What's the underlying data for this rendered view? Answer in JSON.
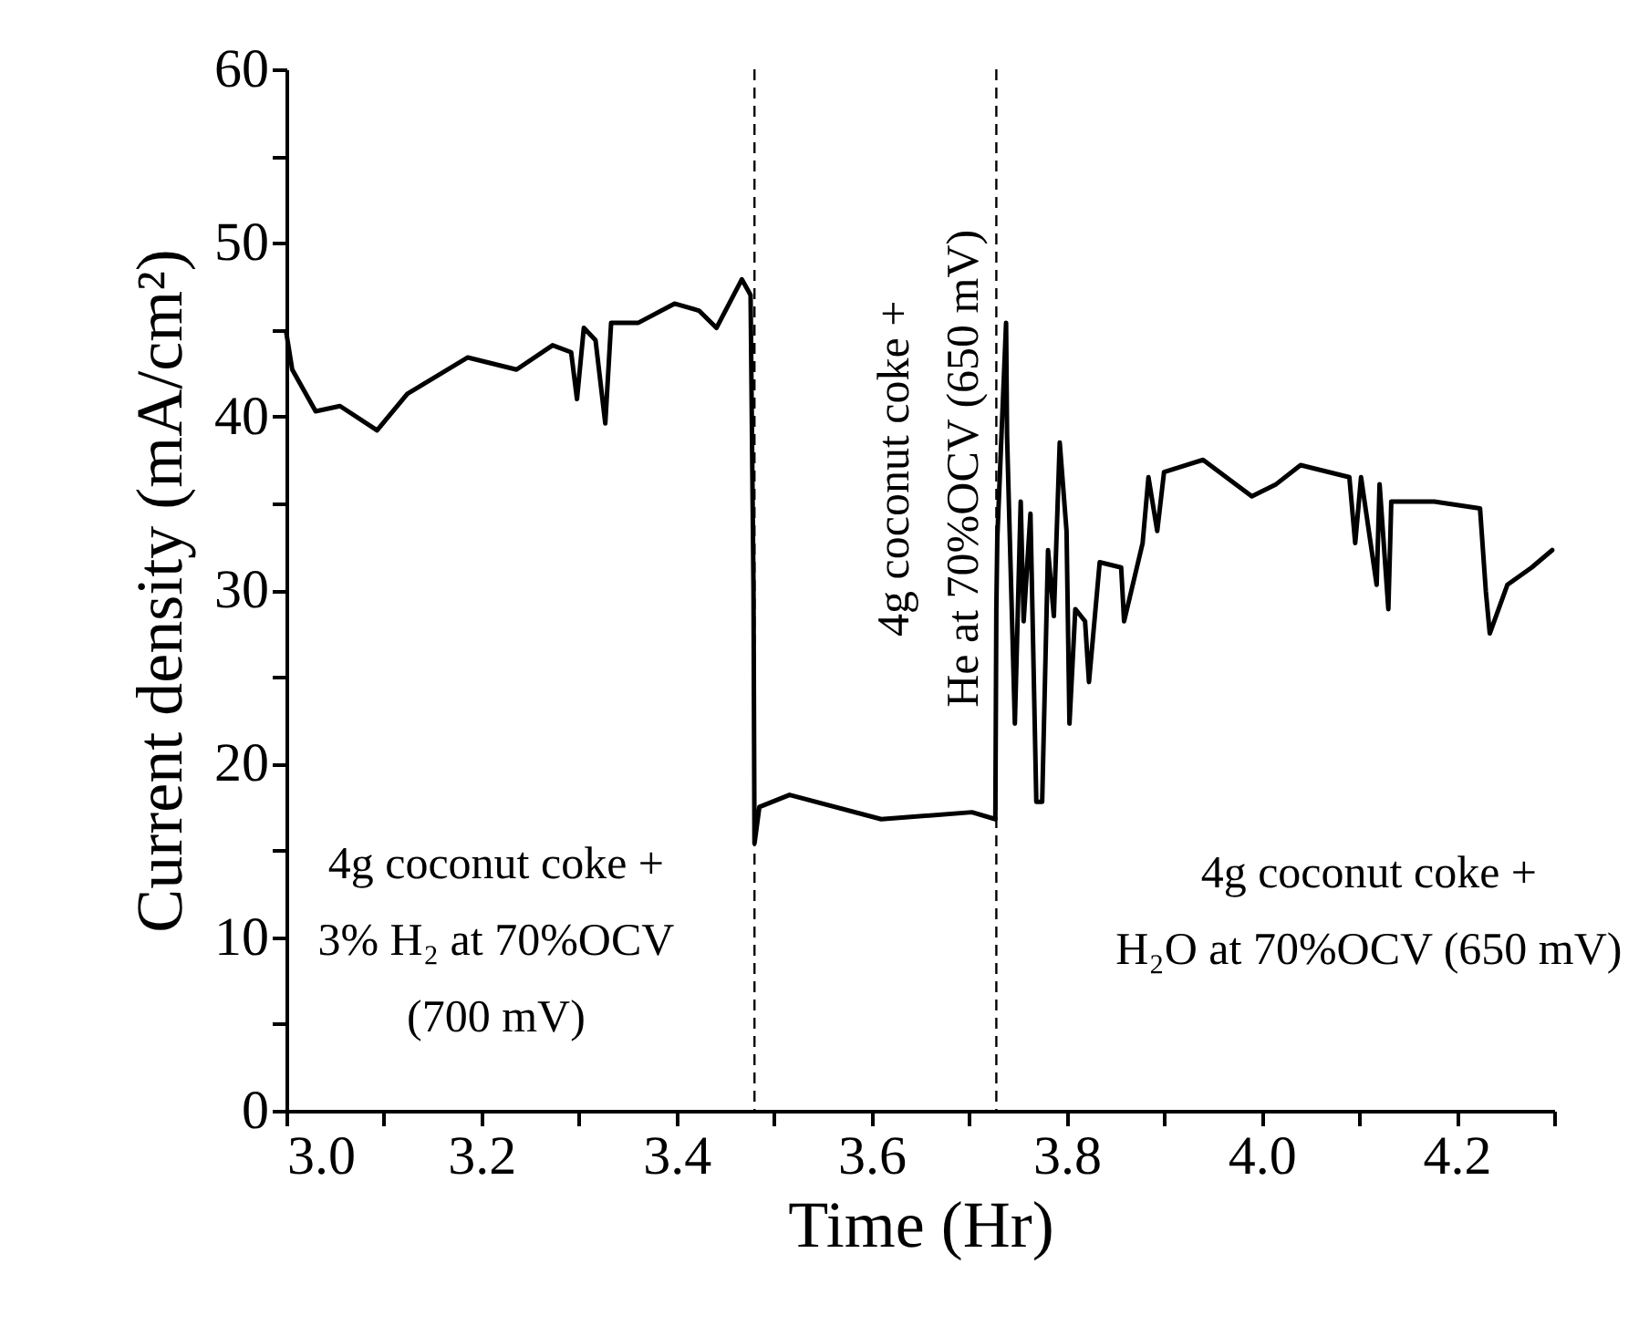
{
  "chart_data": {
    "type": "line",
    "xlabel": "Time (Hr)",
    "ylabel": "Current density (mA/cm²)",
    "x": [
      3.0,
      3.006,
      3.03,
      3.055,
      3.093,
      3.124,
      3.186,
      3.236,
      3.273,
      3.292,
      3.298,
      3.305,
      3.317,
      3.327,
      3.333,
      3.361,
      3.398,
      3.423,
      3.441,
      3.467,
      3.476,
      3.479,
      3.48,
      3.485,
      3.516,
      3.61,
      3.703,
      3.727,
      3.728,
      3.729,
      3.738,
      3.739,
      3.741,
      3.747,
      3.753,
      3.756,
      3.763,
      3.769,
      3.775,
      3.781,
      3.787,
      3.793,
      3.8,
      3.803,
      3.809,
      3.819,
      3.823,
      3.834,
      3.856,
      3.859,
      3.878,
      3.884,
      3.893,
      3.9,
      3.94,
      3.99,
      4.015,
      4.04,
      4.09,
      4.096,
      4.102,
      4.118,
      4.121,
      4.13,
      4.133,
      4.177,
      4.224,
      4.23,
      4.234,
      4.252,
      4.277,
      4.298
    ],
    "series": [
      {
        "color": "#000000",
        "values": [
          44.8,
          42.7,
          40.3,
          40.6,
          39.2,
          41.3,
          43.4,
          42.7,
          44.1,
          43.7,
          41.0,
          45.1,
          44.4,
          39.6,
          45.4,
          45.4,
          46.5,
          46.1,
          45.1,
          47.9,
          47.0,
          30.0,
          15.4,
          17.5,
          18.2,
          16.8,
          17.2,
          16.8,
          28.9,
          33.0,
          45.4,
          38.9,
          34.7,
          22.3,
          35.1,
          28.2,
          34.4,
          17.8,
          17.8,
          32.3,
          28.5,
          38.5,
          33.4,
          22.3,
          28.9,
          28.2,
          24.7,
          31.6,
          31.3,
          28.2,
          32.7,
          36.5,
          33.4,
          36.8,
          37.5,
          35.4,
          36.1,
          37.2,
          36.5,
          32.7,
          36.5,
          30.3,
          36.1,
          28.9,
          35.1,
          35.1,
          34.7,
          29.9,
          27.5,
          30.3,
          31.3,
          32.3
        ]
      }
    ],
    "xlim": [
      3.0,
      4.3
    ],
    "xticks": [
      {
        "value": 3.0,
        "label": "3.0"
      },
      {
        "value": 3.1,
        "label": null
      },
      {
        "value": 3.2,
        "label": "3.2"
      },
      {
        "value": 3.3,
        "label": null
      },
      {
        "value": 3.4,
        "label": "3.4"
      },
      {
        "value": 3.5,
        "label": null
      },
      {
        "value": 3.6,
        "label": "3.6"
      },
      {
        "value": 3.7,
        "label": null
      },
      {
        "value": 3.8,
        "label": "3.8"
      },
      {
        "value": 3.9,
        "label": null
      },
      {
        "value": 4.0,
        "label": "4.0"
      },
      {
        "value": 4.1,
        "label": null
      },
      {
        "value": 4.2,
        "label": "4.2"
      },
      {
        "value": 4.3,
        "label": null
      }
    ],
    "ylim": [
      0,
      60
    ],
    "yticks": [
      0,
      {
        "value": 5,
        "label": null
      },
      10,
      {
        "value": 15,
        "label": null
      },
      20,
      {
        "value": 25,
        "label": null
      },
      30,
      {
        "value": 35,
        "label": null
      },
      40,
      {
        "value": 45,
        "label": null
      },
      50,
      {
        "value": 55,
        "label": null
      },
      60
    ],
    "ref_lines": [
      {
        "axis": "x",
        "value": 3.48,
        "line_style": "dashed",
        "color": "#000000"
      },
      {
        "axis": "x",
        "value": 3.728,
        "line_style": "dashed",
        "color": "#000000"
      }
    ],
    "annotations": [
      "4g coconut coke +\n3% H₂ at 70%OCV\n(700 mV)",
      "4g coconut coke +\nHe at 70%OCV (650 mV)",
      "4g coconut coke +\nH₂O at 70%OCV (650 mV)"
    ]
  }
}
